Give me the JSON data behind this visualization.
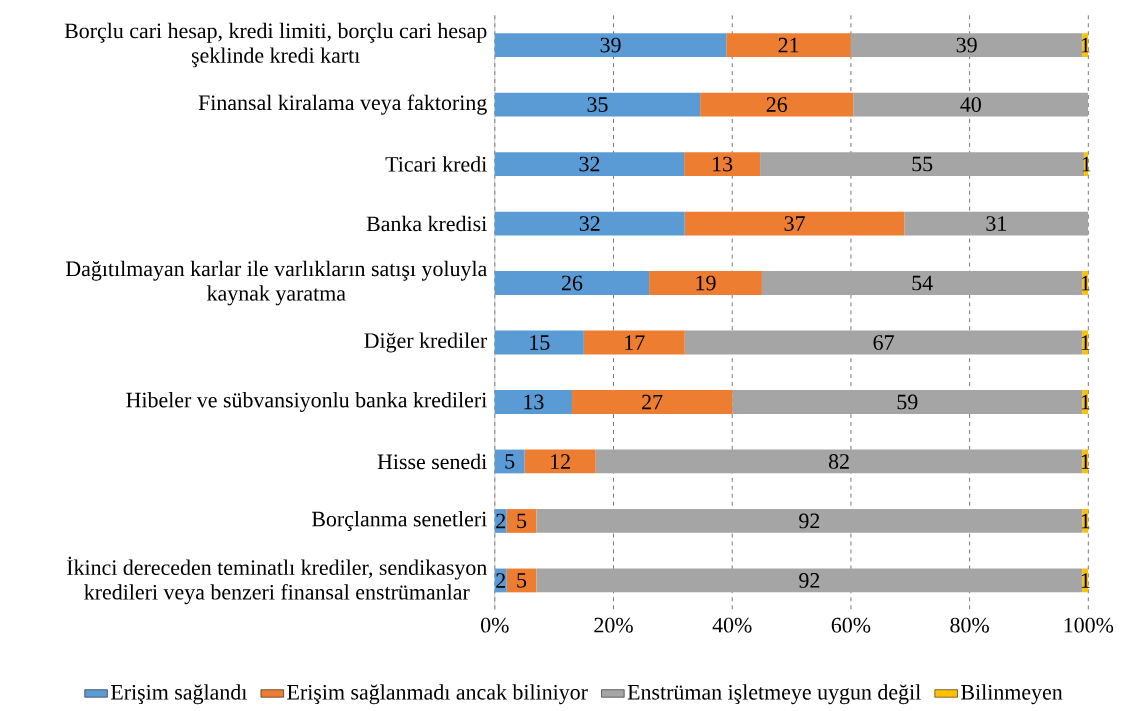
{
  "chart_data": {
    "type": "bar",
    "orientation": "horizontal",
    "stacked": true,
    "categories": [
      "Borçlu cari hesap, kredi limiti, borçlu cari hesap şeklinde kredi kartı",
      "Finansal kiralama veya faktoring",
      "Ticari kredi",
      "Banka kredisi",
      "Dağıtılmayan karlar ile varlıkların satışı yoluyla kaynak yaratma",
      "Diğer krediler",
      "Hibeler ve sübvansiyonlu banka kredileri",
      "Hisse senedi",
      "Borçlanma senetleri",
      "İkinci dereceden teminatlı krediler, sendikasyon kredileri veya benzeri finansal enstrümanlar"
    ],
    "series": [
      {
        "name": "Erişim sağlandı",
        "color": "#5b9bd5",
        "values": [
          39,
          34.6,
          31.9,
          32,
          26,
          15,
          13,
          5,
          2,
          2
        ],
        "value_labels": [
          "39",
          "35",
          "32",
          "32",
          "26",
          "15",
          "13",
          "5",
          "2",
          "2"
        ]
      },
      {
        "name": "Erişim sağlanmadı ancak biliniyor",
        "color": "#ed7d31",
        "values": [
          21,
          25.8,
          12.8,
          37,
          19,
          17,
          27,
          12,
          5,
          5
        ],
        "value_labels": [
          "21",
          "26",
          "13",
          "37",
          "19",
          "17",
          "27",
          "12",
          "5",
          "5"
        ]
      },
      {
        "name": "Enstrüman işletmeye uygun değil",
        "color": "#a5a5a5",
        "values": [
          39,
          39.6,
          54.6,
          31,
          54,
          67,
          59,
          82,
          92,
          92
        ],
        "value_labels": [
          "39",
          "40",
          "55",
          "31",
          "54",
          "67",
          "59",
          "82",
          "92",
          "92"
        ]
      },
      {
        "name": "Bilinmeyen",
        "color": "#ffc000",
        "values": [
          1,
          null,
          0.7,
          null,
          1,
          1,
          1,
          1,
          1,
          1
        ],
        "value_labels": [
          "1",
          null,
          "1",
          null,
          "1",
          "1",
          "1",
          "1",
          "1",
          "1"
        ]
      }
    ],
    "xlim": [
      0,
      100
    ],
    "xticks": [
      {
        "value": 0,
        "label": "0%"
      },
      {
        "value": 20,
        "label": "20%"
      },
      {
        "value": 40,
        "label": "40%"
      },
      {
        "value": 60,
        "label": "60%"
      },
      {
        "value": 80,
        "label": "80%"
      },
      {
        "value": 100,
        "label": "100%"
      }
    ],
    "grid": "x",
    "legend": "bottom"
  }
}
